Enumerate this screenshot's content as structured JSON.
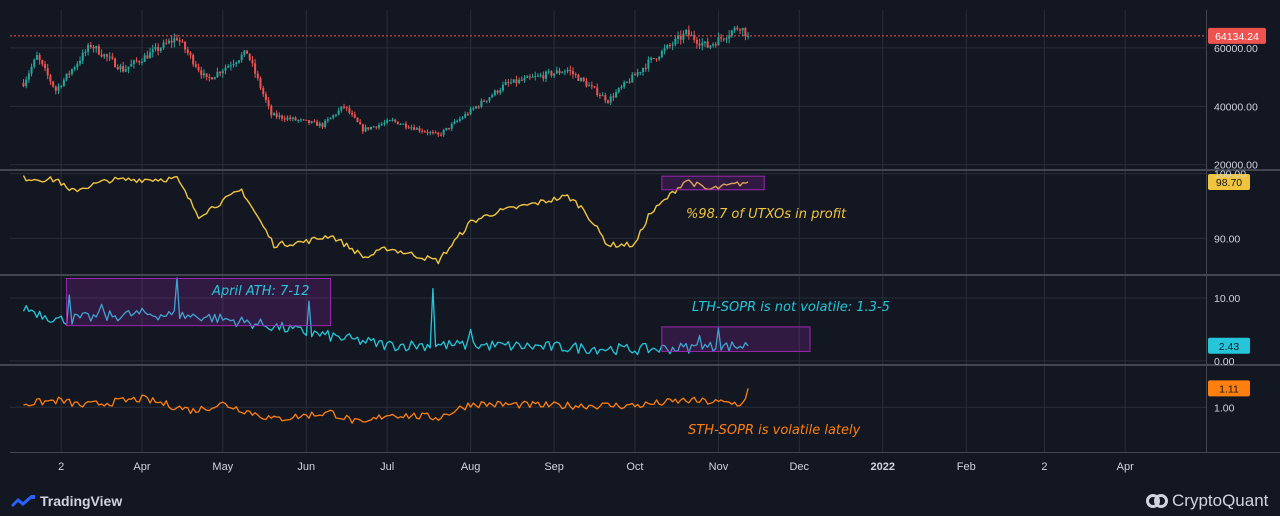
{
  "chart_data": [
    {
      "type": "candlestick",
      "name": "",
      "y_ticks": [
        "60000.00",
        "40000.00",
        "20000.00"
      ],
      "y_tick_values": [
        60000,
        40000,
        20000
      ],
      "ylim": [
        18500,
        73000
      ],
      "price_line": {
        "value": 64134.24,
        "label": "64134.24",
        "color": "#ef5350"
      },
      "up_color": "#26a69a",
      "down_color": "#ef5350",
      "anchors": [
        [
          "2021-02-16",
          48000
        ],
        [
          "2021-02-21",
          57000
        ],
        [
          "2021-02-28",
          45500
        ],
        [
          "2021-03-13",
          61000
        ],
        [
          "2021-03-25",
          52500
        ],
        [
          "2021-04-14",
          63500
        ],
        [
          "2021-04-25",
          49000
        ],
        [
          "2021-05-10",
          58500
        ],
        [
          "2021-05-19",
          37000
        ],
        [
          "2021-06-07",
          33500
        ],
        [
          "2021-06-15",
          40000
        ],
        [
          "2021-06-22",
          32000
        ],
        [
          "2021-07-03",
          35000
        ],
        [
          "2021-07-20",
          30000
        ],
        [
          "2021-08-14",
          47500
        ],
        [
          "2021-09-06",
          52500
        ],
        [
          "2021-09-21",
          42000
        ],
        [
          "2021-10-06",
          55000
        ],
        [
          "2021-10-20",
          65000
        ],
        [
          "2021-10-28",
          60500
        ],
        [
          "2021-11-09",
          67500
        ],
        [
          "2021-11-12",
          64134
        ]
      ]
    },
    {
      "type": "line",
      "name": "",
      "color": "#f0c43c",
      "y_ticks": [
        "100.00",
        "90.00"
      ],
      "y_tick_values": [
        100,
        90
      ],
      "ylim": [
        84.5,
        100.4
      ],
      "last_value": "98.70",
      "annotation": "%98.7 of UTXOs in profit",
      "highlight": {
        "x_start": "2021-10-11",
        "x_end": "2021-11-18",
        "y_start": 97.5,
        "y_end": 99.6
      },
      "anchors": [
        [
          "2021-02-16",
          99.3
        ],
        [
          "2021-03-01",
          99.0
        ],
        [
          "2021-03-05",
          97.2
        ],
        [
          "2021-03-20",
          99.0
        ],
        [
          "2021-04-14",
          99.2
        ],
        [
          "2021-04-22",
          93.5
        ],
        [
          "2021-05-08",
          97.5
        ],
        [
          "2021-05-20",
          89.0
        ],
        [
          "2021-06-01",
          89.5
        ],
        [
          "2021-06-10",
          90.5
        ],
        [
          "2021-06-23",
          87.0
        ],
        [
          "2021-07-01",
          88.5
        ],
        [
          "2021-07-20",
          86.5
        ],
        [
          "2021-08-01",
          92.5
        ],
        [
          "2021-08-10",
          94.0
        ],
        [
          "2021-09-06",
          96.5
        ],
        [
          "2021-09-12",
          94.5
        ],
        [
          "2021-09-21",
          89.0
        ],
        [
          "2021-10-01",
          89.0
        ],
        [
          "2021-10-06",
          93.5
        ],
        [
          "2021-10-20",
          99.0
        ],
        [
          "2021-10-28",
          97.5
        ],
        [
          "2021-11-12",
          98.7
        ]
      ]
    },
    {
      "type": "line",
      "name": "",
      "color": "#26c6da",
      "y_ticks": [
        "10.00",
        "0.00"
      ],
      "y_tick_values": [
        10,
        0
      ],
      "ylim": [
        -0.5,
        13.5
      ],
      "last_value": "2.43",
      "annotation_1": "April ATH: 7-12",
      "annotation_2": "LTH-SOPR is not volatile: 1.3-5",
      "highlight_1": {
        "x_start": "2021-03-04",
        "x_end": "2021-06-10",
        "y_start": 5.6,
        "y_end": 13.1
      },
      "highlight_2": {
        "x_start": "2021-10-11",
        "x_end": "2021-12-05",
        "y_start": 1.5,
        "y_end": 5.4
      },
      "spikes": [
        [
          "2021-03-05",
          10.5
        ],
        [
          "2021-03-17",
          9.0
        ],
        [
          "2021-04-14",
          13.2
        ],
        [
          "2021-06-02",
          9.5
        ],
        [
          "2021-07-18",
          11.5
        ],
        [
          "2021-08-01",
          5.0
        ],
        [
          "2021-11-01",
          5.2
        ],
        [
          "2021-10-25",
          4.0
        ]
      ],
      "anchors": [
        [
          "2021-02-16",
          8.5
        ],
        [
          "2021-03-01",
          6.5
        ],
        [
          "2021-04-01",
          7.5
        ],
        [
          "2021-04-25",
          7.0
        ],
        [
          "2021-05-20",
          5.5
        ],
        [
          "2021-06-01",
          4.5
        ],
        [
          "2021-07-01",
          2.5
        ],
        [
          "2021-08-01",
          2.5
        ],
        [
          "2021-09-01",
          2.2
        ],
        [
          "2021-10-01",
          1.8
        ],
        [
          "2021-11-12",
          2.4
        ]
      ]
    },
    {
      "type": "line",
      "name": "",
      "color": "#ff7f0e",
      "y_ticks": [
        "1.00"
      ],
      "y_tick_values": [
        1.0
      ],
      "ylim": [
        0.74,
        1.24
      ],
      "last_value": "1.11",
      "annotation": "STH-SOPR is volatile lately",
      "anchors": [
        [
          "2021-02-16",
          1.02
        ],
        [
          "2021-03-01",
          1.04
        ],
        [
          "2021-03-10",
          1.01
        ],
        [
          "2021-04-01",
          1.05
        ],
        [
          "2021-04-20",
          0.98
        ],
        [
          "2021-05-01",
          1.02
        ],
        [
          "2021-05-20",
          0.93
        ],
        [
          "2021-06-10",
          0.97
        ],
        [
          "2021-06-22",
          0.9
        ],
        [
          "2021-07-01",
          0.96
        ],
        [
          "2021-07-20",
          0.94
        ],
        [
          "2021-08-01",
          1.02
        ],
        [
          "2021-09-01",
          1.01
        ],
        [
          "2021-10-01",
          1.01
        ],
        [
          "2021-10-20",
          1.04
        ],
        [
          "2021-11-10",
          1.02
        ],
        [
          "2021-11-12",
          1.11
        ]
      ]
    }
  ],
  "x_axis": {
    "x_range": [
      "2021-02-11",
      "2022-05-01"
    ],
    "ticks": [
      {
        "date": "2021-03-02",
        "label": "2"
      },
      {
        "date": "2021-04-01",
        "label": "Apr"
      },
      {
        "date": "2021-05-01",
        "label": "May"
      },
      {
        "date": "2021-06-01",
        "label": "Jun"
      },
      {
        "date": "2021-07-01",
        "label": "Jul"
      },
      {
        "date": "2021-08-01",
        "label": "Aug"
      },
      {
        "date": "2021-09-01",
        "label": "Sep"
      },
      {
        "date": "2021-10-01",
        "label": "Oct"
      },
      {
        "date": "2021-11-01",
        "label": "Nov"
      },
      {
        "date": "2021-12-01",
        "label": "Dec"
      },
      {
        "date": "2022-01-01",
        "label": "2022"
      },
      {
        "date": "2022-02-01",
        "label": "Feb"
      },
      {
        "date": "2022-03-02",
        "label": "2"
      },
      {
        "date": "2022-04-01",
        "label": "Apr"
      }
    ]
  },
  "footer": {
    "left_brand": "TradingView",
    "right_brand": "CryptoQuant"
  },
  "colors": {
    "background": "#131722",
    "grid": "#2a2e39",
    "divider": "#434651",
    "axis_text": "#d1d4dc",
    "highlight_stroke": "#9c27b0"
  }
}
